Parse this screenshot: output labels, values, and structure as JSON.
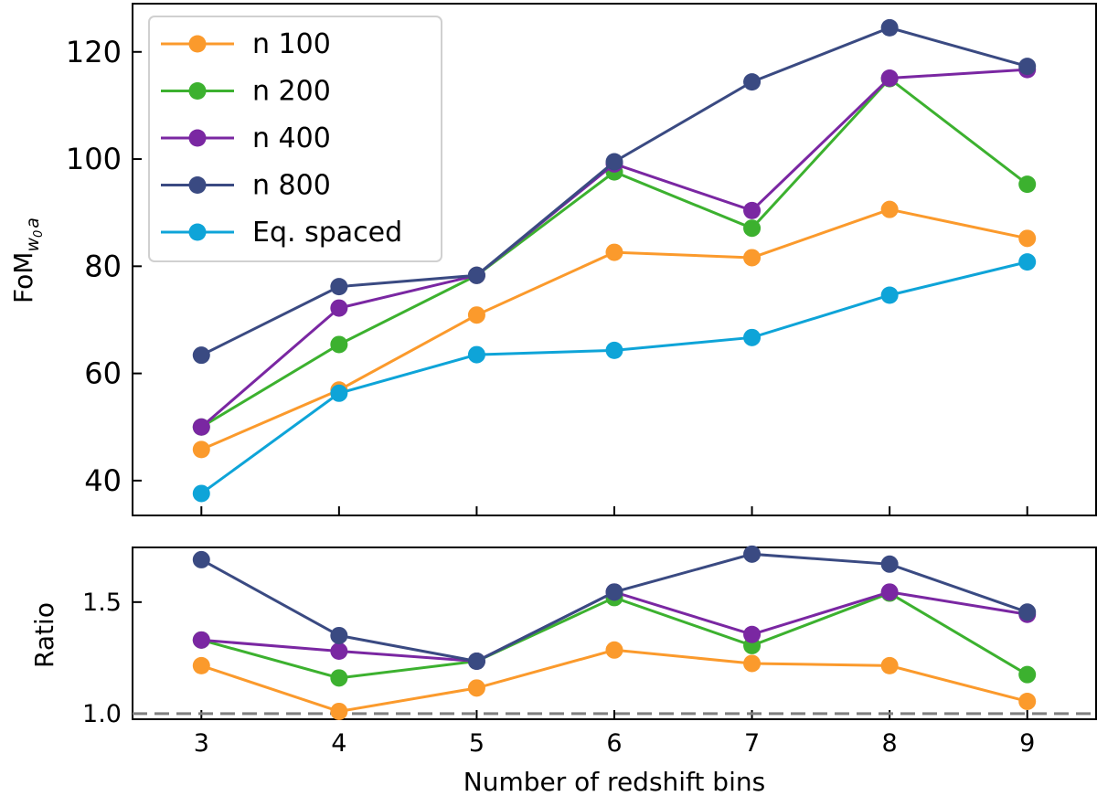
{
  "chart_data": [
    {
      "type": "line",
      "panel": "top",
      "x": [
        3,
        4,
        5,
        6,
        7,
        8,
        9
      ],
      "xlim": [
        2.5,
        9.5
      ],
      "ylim": [
        33.5,
        129
      ],
      "yticks": [
        40,
        60,
        80,
        100,
        120
      ],
      "xticks": [
        3,
        4,
        5,
        6,
        7,
        8,
        9
      ],
      "ylabel_main": "FoM",
      "ylabel_sub": "w",
      "ylabel_sub_0": "0",
      "ylabel_sub_a": "a",
      "legend_position": "upper-left",
      "grid": false,
      "series": [
        {
          "key": "n100",
          "name": "n 100",
          "color": "#fb9a2c",
          "values": [
            45.8,
            56.9,
            70.9,
            82.6,
            81.6,
            90.6,
            85.2
          ]
        },
        {
          "key": "n200",
          "name": "n 200",
          "color": "#3cb12f",
          "values": [
            50.0,
            65.4,
            78.3,
            97.6,
            87.1,
            115.0,
            95.3
          ]
        },
        {
          "key": "n400",
          "name": "n 400",
          "color": "#7a27a2",
          "values": [
            50.0,
            72.2,
            78.3,
            99.1,
            90.4,
            115.1,
            116.7
          ]
        },
        {
          "key": "n800",
          "name": "n 800",
          "color": "#3a4a82",
          "values": [
            63.4,
            76.2,
            78.3,
            99.5,
            114.4,
            124.5,
            117.3
          ]
        },
        {
          "key": "eq",
          "name": "Eq. spaced",
          "color": "#0ea4d8",
          "values": [
            37.6,
            56.3,
            63.5,
            64.3,
            66.7,
            74.6,
            80.8
          ]
        }
      ]
    },
    {
      "type": "line",
      "panel": "bottom",
      "x": [
        3,
        4,
        5,
        6,
        7,
        8,
        9
      ],
      "xlim": [
        2.5,
        9.5
      ],
      "ylim": [
        0.975,
        1.745
      ],
      "yticks": [
        1.0,
        1.5
      ],
      "ytick_labels": [
        "1.0",
        "1.5"
      ],
      "xticks": [
        3,
        4,
        5,
        6,
        7,
        8,
        9
      ],
      "ylabel": "Ratio",
      "xlabel": "Number of redshift bins",
      "reference_line": 1.0,
      "reference_color": "#808080",
      "grid": false,
      "series": [
        {
          "key": "n100",
          "color": "#fb9a2c",
          "values": [
            1.215,
            1.01,
            1.115,
            1.285,
            1.225,
            1.215,
            1.055
          ]
        },
        {
          "key": "n200",
          "color": "#3cb12f",
          "values": [
            1.33,
            1.16,
            1.235,
            1.52,
            1.305,
            1.54,
            1.175
          ]
        },
        {
          "key": "n400",
          "color": "#7a27a2",
          "values": [
            1.33,
            1.28,
            1.235,
            1.545,
            1.355,
            1.545,
            1.445
          ]
        },
        {
          "key": "n800",
          "color": "#3a4a82",
          "values": [
            1.69,
            1.35,
            1.235,
            1.545,
            1.715,
            1.67,
            1.455
          ]
        }
      ]
    }
  ]
}
